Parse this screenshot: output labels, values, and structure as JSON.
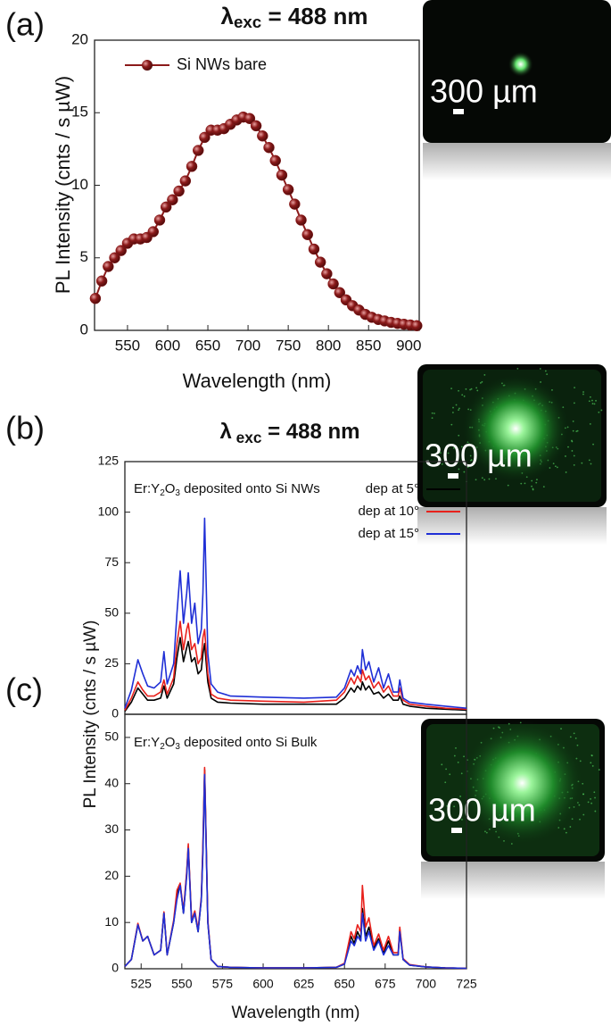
{
  "chart_data": [
    {
      "type": "line",
      "panel_label": "(a)",
      "title_parts": [
        "λ",
        "exc",
        " = 488 nm"
      ],
      "xlabel": "Wavelength (nm)",
      "ylabel": "PL Intensity (cnts / s µW)",
      "image_scale_label": "300 µm",
      "markers": true,
      "x": [
        510,
        518,
        526,
        534,
        542,
        550,
        558,
        566,
        574,
        582,
        590,
        598,
        606,
        614,
        622,
        630,
        638,
        646,
        654,
        662,
        670,
        678,
        686,
        694,
        702,
        710,
        718,
        726,
        734,
        742,
        750,
        758,
        766,
        774,
        782,
        790,
        798,
        806,
        814,
        822,
        830,
        838,
        846,
        854,
        862,
        870,
        878,
        886,
        894,
        902,
        910
      ],
      "series": [
        {
          "name": "Si NWs bare",
          "color": "#8b1a1a",
          "values": [
            2.2,
            3.4,
            4.4,
            5.0,
            5.5,
            6.0,
            6.3,
            6.3,
            6.4,
            6.8,
            7.6,
            8.5,
            9.0,
            9.6,
            10.3,
            11.3,
            12.4,
            13.3,
            13.8,
            13.8,
            13.9,
            14.2,
            14.5,
            14.7,
            14.6,
            14.1,
            13.4,
            12.6,
            11.7,
            10.7,
            9.7,
            8.7,
            7.6,
            6.6,
            5.6,
            4.7,
            3.9,
            3.2,
            2.6,
            2.1,
            1.7,
            1.4,
            1.1,
            0.9,
            0.75,
            0.65,
            0.55,
            0.48,
            0.42,
            0.37,
            0.32
          ]
        }
      ],
      "xlim": [
        509,
        913
      ],
      "xticks": [
        550,
        600,
        650,
        700,
        750,
        800,
        850,
        900
      ],
      "ylim": [
        0,
        20
      ],
      "yticks": [
        0,
        5,
        10,
        15,
        20
      ]
    },
    {
      "type": "line",
      "panel_label": "(b)",
      "title_parts": [
        "λ",
        " exc",
        " = 488 nm"
      ],
      "ylabel": "PL Intensity (cnts / s µW)",
      "image_scale_label": "300 µm",
      "annotation_parts": [
        "Er:Y",
        "2",
        "O",
        "3",
        " deposited onto Si NWs"
      ],
      "x": [
        515,
        519,
        523,
        526,
        529,
        533,
        537,
        539,
        541,
        545,
        547,
        549,
        551,
        553,
        554,
        556,
        558,
        560,
        562,
        563,
        564,
        566,
        568,
        572,
        580,
        600,
        625,
        645,
        650,
        654,
        656,
        658,
        660,
        661,
        663,
        665,
        668,
        671,
        674,
        677,
        680,
        683,
        684,
        686,
        690,
        700,
        712,
        725
      ],
      "series": [
        {
          "name": "dep at 5°",
          "color": "#000000",
          "values": [
            1.5,
            6,
            13,
            10,
            7,
            7,
            8,
            14,
            8,
            15,
            28,
            38,
            26,
            33,
            36,
            26,
            28,
            20,
            22,
            30,
            35,
            16,
            8,
            6,
            5.5,
            5,
            5,
            5,
            8,
            13,
            11,
            14,
            12,
            16,
            12,
            14,
            10,
            11,
            8,
            10,
            7,
            7,
            9,
            5,
            4,
            3,
            2.5,
            2
          ]
        },
        {
          "name": "dep at 10°",
          "color": "#e8211c",
          "values": [
            2,
            8,
            16,
            12,
            9,
            9,
            11,
            17,
            10,
            18,
            35,
            46,
            32,
            42,
            45,
            32,
            35,
            25,
            28,
            38,
            42,
            20,
            10,
            8,
            7,
            6.5,
            6,
            7,
            11,
            18,
            15,
            19,
            16,
            22,
            17,
            19,
            13,
            16,
            11,
            14,
            9,
            9,
            13,
            7,
            5,
            4,
            3,
            2.5
          ]
        },
        {
          "name": "dep at 15°",
          "color": "#1f2fd6",
          "values": [
            3,
            12,
            27,
            20,
            14,
            13,
            16,
            31,
            15,
            25,
            50,
            71,
            45,
            60,
            70,
            45,
            55,
            35,
            42,
            60,
            97,
            30,
            15,
            11,
            9,
            8.5,
            8,
            8.5,
            13,
            22,
            19,
            24,
            20,
            32,
            22,
            26,
            16,
            23,
            13,
            20,
            11,
            11,
            17,
            8,
            6,
            5,
            4,
            3
          ]
        }
      ],
      "xlim": [
        515,
        725
      ],
      "ylim": [
        0,
        125
      ],
      "yticks": [
        0,
        25,
        50,
        75,
        100,
        125
      ]
    },
    {
      "type": "line",
      "panel_label": "(c)",
      "xlabel": "Wavelength (nm)",
      "image_scale_label": "300 µm",
      "annotation_parts": [
        "Er:Y",
        "2",
        "O",
        "3",
        " deposited onto Si Bulk"
      ],
      "x": [
        515,
        519,
        523,
        526,
        529,
        533,
        537,
        539,
        541,
        545,
        547,
        549,
        551,
        553,
        554,
        556,
        558,
        560,
        562,
        563,
        564,
        566,
        568,
        572,
        580,
        600,
        625,
        645,
        650,
        654,
        656,
        658,
        660,
        661,
        663,
        665,
        668,
        671,
        674,
        677,
        680,
        683,
        684,
        686,
        690,
        700,
        712,
        725
      ],
      "series": [
        {
          "name": "dep at 5°",
          "color": "#000000",
          "values": [
            0.5,
            2,
            9.6,
            6,
            7,
            3,
            4,
            12.1,
            3,
            10,
            16,
            18.2,
            12,
            20.5,
            26.5,
            10,
            12,
            8,
            15,
            26,
            43,
            10,
            2,
            0.5,
            0.3,
            0.2,
            0.2,
            0.3,
            1,
            7,
            5.5,
            8,
            6.5,
            13,
            7,
            9,
            4.5,
            6.5,
            3.5,
            6,
            3,
            3,
            8.5,
            2,
            0.8,
            0.4,
            0.2,
            0.1
          ]
        },
        {
          "name": "dep at 10°",
          "color": "#e8211c",
          "values": [
            0.5,
            2,
            9.8,
            6,
            7,
            3,
            4,
            12.3,
            3,
            10.5,
            17,
            18.5,
            12.5,
            21,
            27,
            10.5,
            12.5,
            8.5,
            15.5,
            27,
            43.5,
            10.5,
            2,
            0.5,
            0.3,
            0.2,
            0.2,
            0.3,
            1.2,
            8,
            6.5,
            9.5,
            8,
            18,
            9,
            11,
            5,
            7.5,
            4,
            7,
            3.5,
            3.5,
            9,
            2.2,
            0.9,
            0.4,
            0.2,
            0.1
          ]
        },
        {
          "name": "dep at 15°",
          "color": "#1f2fd6",
          "values": [
            0.5,
            2,
            9.5,
            6,
            7,
            3,
            4,
            12,
            3,
            10,
            15,
            18,
            12,
            20,
            26,
            10,
            12,
            8,
            15,
            25,
            42,
            10,
            2,
            0.5,
            0.3,
            0.2,
            0.2,
            0.3,
            1,
            6,
            5,
            7,
            6,
            12,
            6,
            8,
            4,
            6,
            3,
            5,
            3,
            3,
            8,
            2,
            0.8,
            0.4,
            0.2,
            0.1
          ]
        }
      ],
      "xlim": [
        515,
        725
      ],
      "xticks": [
        525,
        550,
        575,
        600,
        625,
        650,
        675,
        700,
        725
      ],
      "ylim": [
        0,
        55
      ],
      "yticks": [
        0,
        10,
        20,
        30,
        40,
        50
      ]
    }
  ]
}
